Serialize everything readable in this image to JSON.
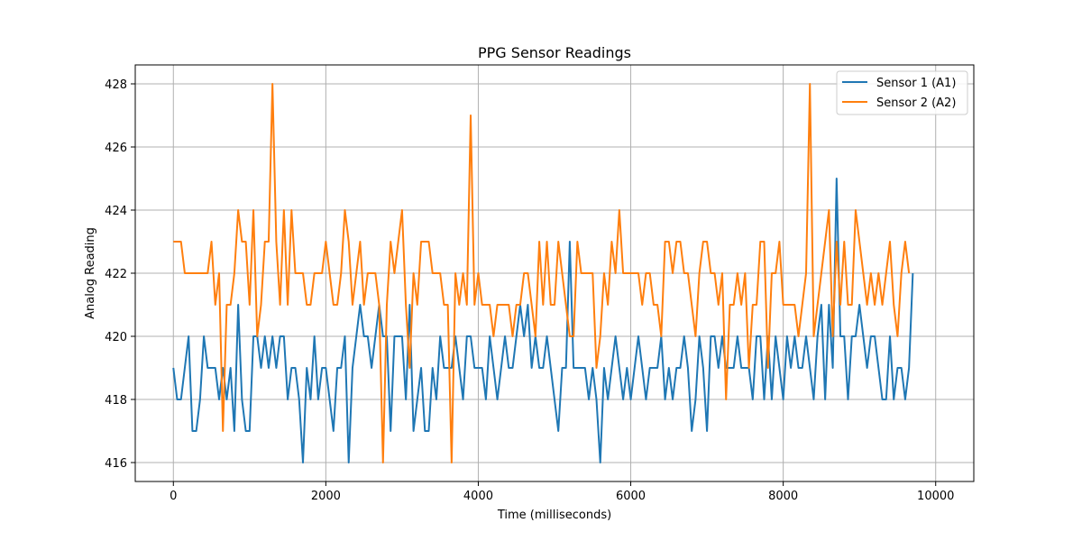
{
  "chart_data": {
    "type": "line",
    "title": "PPG Sensor Readings",
    "xlabel": "Time (milliseconds)",
    "ylabel": "Analog Reading",
    "xlim": [
      -500,
      10500
    ],
    "ylim": [
      415.4,
      428.6
    ],
    "xticks": [
      0,
      2000,
      4000,
      6000,
      8000,
      10000
    ],
    "yticks": [
      416,
      418,
      420,
      422,
      424,
      426,
      428
    ],
    "grid": true,
    "legend_position": "top-right",
    "x_step": 50,
    "series": [
      {
        "name": "Sensor 1 (A1)",
        "color": "#1f77b4",
        "values": [
          419,
          418,
          418,
          419,
          420,
          417,
          417,
          418,
          420,
          419,
          419,
          419,
          418,
          419,
          418,
          419,
          417,
          421,
          418,
          417,
          417,
          420,
          420,
          419,
          420,
          419,
          420,
          419,
          420,
          420,
          418,
          419,
          419,
          418,
          416,
          419,
          418,
          420,
          418,
          419,
          419,
          418,
          417,
          419,
          419,
          420,
          416,
          419,
          420,
          421,
          420,
          420,
          419,
          420,
          421,
          420,
          420,
          417,
          420,
          420,
          420,
          418,
          421,
          417,
          418,
          419,
          417,
          417,
          419,
          418,
          420,
          419,
          419,
          419,
          420,
          419,
          418,
          420,
          420,
          419,
          419,
          419,
          418,
          420,
          419,
          418,
          419,
          420,
          419,
          419,
          420,
          421,
          420,
          421,
          419,
          420,
          419,
          419,
          420,
          419,
          418,
          417,
          419,
          419,
          423,
          419,
          419,
          419,
          419,
          418,
          419,
          418,
          416,
          419,
          418,
          419,
          420,
          419,
          418,
          419,
          418,
          419,
          420,
          419,
          418,
          419,
          419,
          419,
          420,
          418,
          419,
          418,
          419,
          419,
          420,
          419,
          417,
          418,
          420,
          419,
          417,
          420,
          420,
          419,
          420,
          419,
          419,
          419,
          420,
          419,
          419,
          419,
          418,
          420,
          420,
          418,
          420,
          418,
          420,
          419,
          418,
          420,
          419,
          420,
          419,
          419,
          420,
          419,
          418,
          420,
          421,
          418,
          421,
          419,
          425,
          420,
          420,
          418,
          420,
          420,
          421,
          420,
          419,
          420,
          420,
          419,
          418,
          418,
          420,
          418,
          419,
          419,
          418,
          419,
          422
        ]
      },
      {
        "name": "Sensor 2 (A2)",
        "color": "#ff7f0e",
        "values": [
          423,
          423,
          423,
          422,
          422,
          422,
          422,
          422,
          422,
          422,
          423,
          421,
          422,
          417,
          421,
          421,
          422,
          424,
          423,
          423,
          421,
          424,
          420,
          421,
          423,
          423,
          428,
          423,
          421,
          424,
          421,
          424,
          422,
          422,
          422,
          421,
          421,
          422,
          422,
          422,
          423,
          422,
          421,
          421,
          422,
          424,
          423,
          421,
          422,
          423,
          421,
          422,
          422,
          422,
          421,
          416,
          421,
          423,
          422,
          423,
          424,
          421,
          419,
          422,
          421,
          423,
          423,
          423,
          422,
          422,
          422,
          421,
          421,
          416,
          422,
          421,
          422,
          421,
          427,
          421,
          422,
          421,
          421,
          421,
          420,
          421,
          421,
          421,
          421,
          420,
          421,
          421,
          422,
          422,
          421,
          420,
          423,
          421,
          423,
          421,
          421,
          423,
          422,
          421,
          420,
          420,
          423,
          422,
          422,
          422,
          422,
          419,
          420,
          422,
          421,
          423,
          422,
          424,
          422,
          422,
          422,
          422,
          422,
          421,
          422,
          422,
          421,
          421,
          420,
          423,
          423,
          422,
          423,
          423,
          422,
          422,
          421,
          420,
          422,
          423,
          423,
          422,
          422,
          421,
          422,
          418,
          421,
          421,
          422,
          421,
          422,
          419,
          421,
          421,
          423,
          423,
          419,
          422,
          422,
          423,
          421,
          421,
          421,
          421,
          420,
          421,
          422,
          428,
          420,
          421,
          422,
          423,
          424,
          420,
          423,
          421,
          423,
          421,
          421,
          424,
          423,
          422,
          421,
          422,
          421,
          422,
          421,
          422,
          423,
          421,
          420,
          422,
          423,
          422
        ]
      }
    ]
  }
}
